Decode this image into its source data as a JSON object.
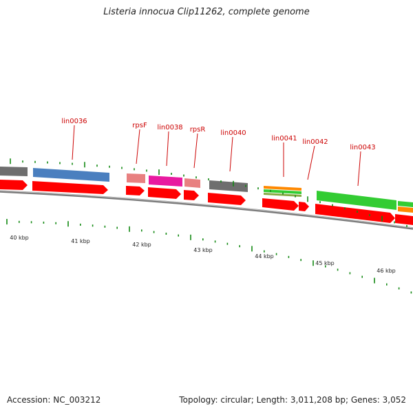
{
  "title": "Listeria innocua Clip11262, complete genome",
  "footer": {
    "accession": "Accession: NC_003212",
    "summary": "Topology: circular; Length: 3,011,208 bp; Genes: 3,052"
  },
  "colors": {
    "cds": "#ff0000",
    "gray": "#6e6e6e",
    "blue": "#4a7fbf",
    "pink": "#e88080",
    "magenta": "#e81aa0",
    "green": "#33cc33",
    "orange": "#ff8800",
    "olive": "#88aa44",
    "tick": "#118811",
    "label": "#cc0000"
  },
  "gene_labels": [
    "lin0036",
    "rpsF",
    "lin0038",
    "rpsR",
    "lin0040",
    "lin0041",
    "lin0042",
    "lin0043"
  ],
  "kbp_labels": [
    "40 kbp",
    "41 kbp",
    "42 kbp",
    "43 kbp",
    "44 kbp",
    "45 kbp",
    "46 kbp"
  ]
}
